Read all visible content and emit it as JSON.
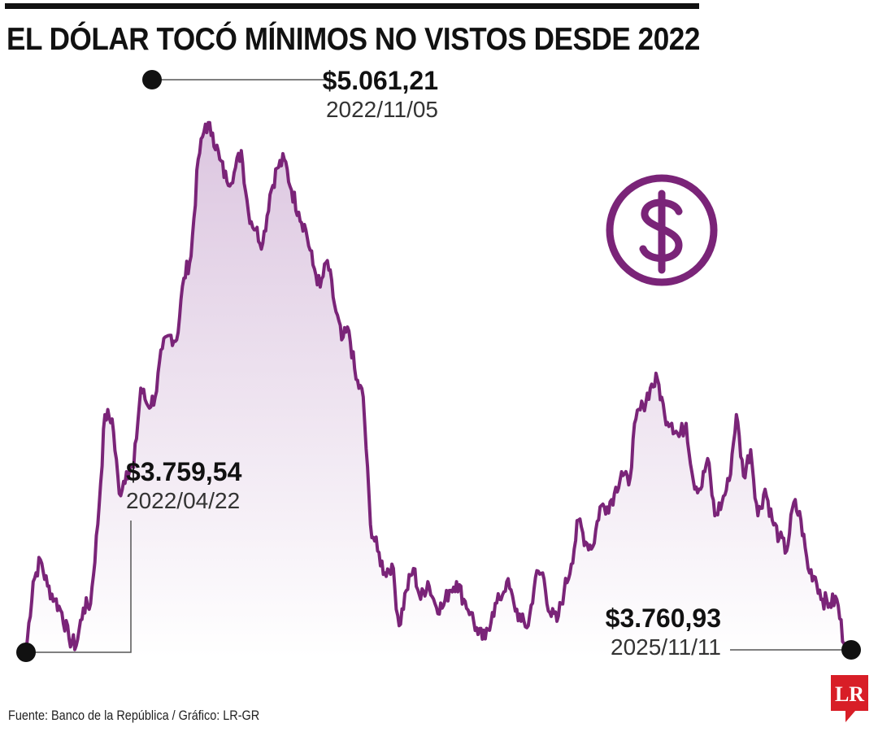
{
  "title": "EL DÓLAR TOCÓ MÍNIMOS NO VISTOS DESDE 2022",
  "source": "Fuente: Banco de la República / Gráfico: LR-GR",
  "logo_text": "LR",
  "colors": {
    "line": "#7a2478",
    "fill_top": "#dcc6e0",
    "fill_bottom": "#ffffff",
    "marker": "#111111",
    "logo": "#d81e27"
  },
  "icon": "dollar-circle-icon",
  "chart_data": {
    "type": "area",
    "title": "EL DÓLAR TOCÓ MÍNIMOS NO VISTOS DESDE 2022",
    "xlabel": "",
    "ylabel": "",
    "x_range": [
      "2022/04/22",
      "2025/11/11"
    ],
    "ylim": [
      3650,
      5100
    ],
    "grid": false,
    "series": [
      {
        "values": [
          3760,
          3920,
          3970,
          3910,
          3880,
          3850,
          3790,
          3775,
          3860,
          3870,
          4050,
          4300,
          4290,
          4120,
          4170,
          4180,
          4360,
          4320,
          4340,
          4450,
          4480,
          4470,
          4610,
          4660,
          4880,
          4960,
          4940,
          4880,
          4830,
          4850,
          4900,
          4760,
          4720,
          4690,
          4800,
          4860,
          4880,
          4810,
          4760,
          4720,
          4640,
          4590,
          4650,
          4550,
          4470,
          4490,
          4380,
          4340,
          4050,
          3990,
          3940,
          3960,
          3820,
          3900,
          3950,
          3880,
          3920,
          3870,
          3860,
          3900,
          3920,
          3880,
          3850,
          3800,
          3790,
          3850,
          3880,
          3920,
          3870,
          3830,
          3820,
          3930,
          3940,
          3850,
          3830,
          3900,
          3960,
          4060,
          4010,
          4000,
          4090,
          4090,
          4120,
          4170,
          4140,
          4290,
          4320,
          4360,
          4380,
          4300,
          4280,
          4250,
          4280,
          4150,
          4130,
          4200,
          4070,
          4100,
          4150,
          4300,
          4160,
          4220,
          4070,
          4130,
          4060,
          4020,
          3990,
          4100,
          4060,
          3950,
          3930,
          3880,
          3870,
          3880,
          3780,
          3761
        ],
        "markers": [
          {
            "value_label": "$3.759,54",
            "date": "2022/04/22",
            "value": 3759.54
          },
          {
            "value_label": "$5.061,21",
            "date": "2022/11/05",
            "value": 5061.21
          },
          {
            "value_label": "$3.760,93",
            "date": "2025/11/11",
            "value": 3760.93
          }
        ]
      }
    ]
  }
}
